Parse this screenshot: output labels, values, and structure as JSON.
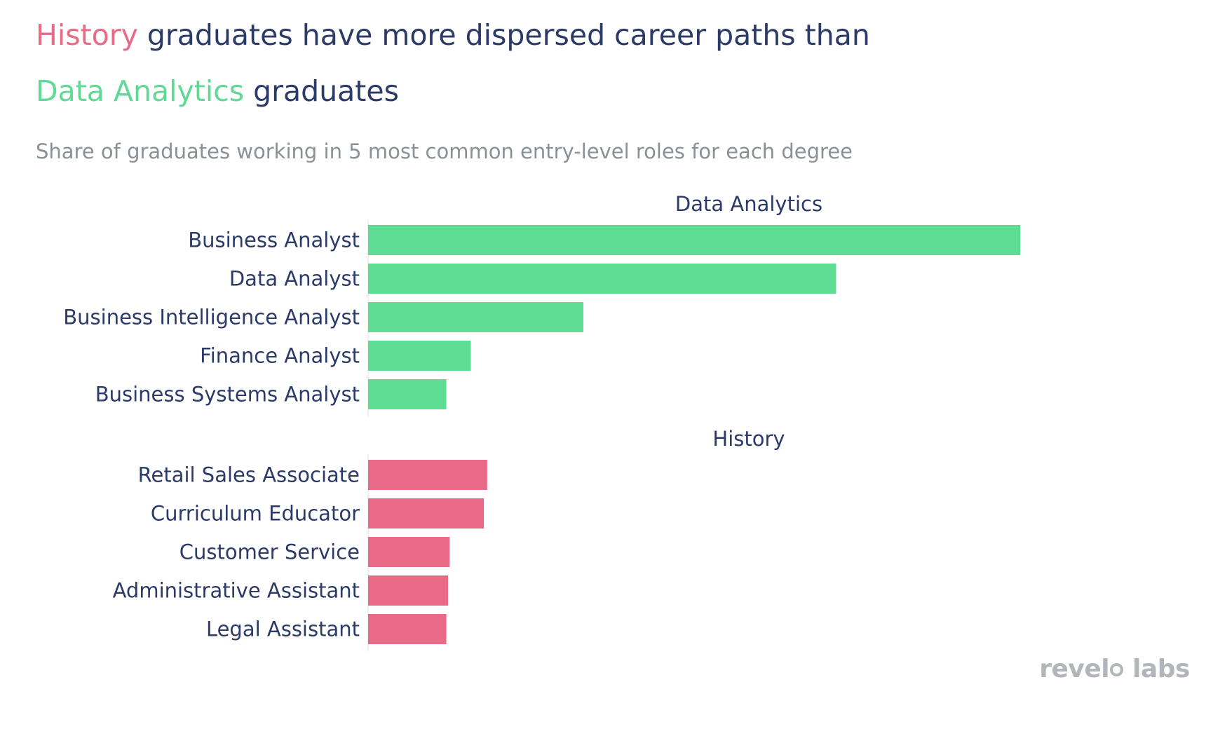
{
  "header": {
    "title_hl1": "History",
    "title_rest1": " graduates have more dispersed career paths than",
    "title_hl2": "Data Analytics",
    "title_rest2": " graduates",
    "subtitle": "Share of graduates working in 5 most common entry-level roles for each degree"
  },
  "chart_data": {
    "type": "bar",
    "orientation": "horizontal",
    "title": "History graduates have more dispersed career paths than Data Analytics graduates",
    "subtitle": "Share of graduates working in 5 most common entry-level roles for each degree",
    "xlim": [
      0,
      0.43
    ],
    "grid": false,
    "panels": [
      {
        "name": "Data Analytics",
        "color": "#5fdc93",
        "categories": [
          "Business Analyst",
          "Data Analyst",
          "Business Intelligence Analyst",
          "Finance Analyst",
          "Business Systems Analyst"
        ],
        "values": [
          0.4,
          0.287,
          0.132,
          0.063,
          0.048
        ]
      },
      {
        "name": "History",
        "color": "#e86a86",
        "categories": [
          "Retail Sales Associate",
          "Curriculum Educator",
          "Customer Service",
          "Administrative Assistant",
          "Legal Assistant"
        ],
        "values": [
          0.073,
          0.071,
          0.05,
          0.049,
          0.048
        ]
      }
    ]
  },
  "logo": {
    "part1": "revel",
    "part2": "labs"
  }
}
